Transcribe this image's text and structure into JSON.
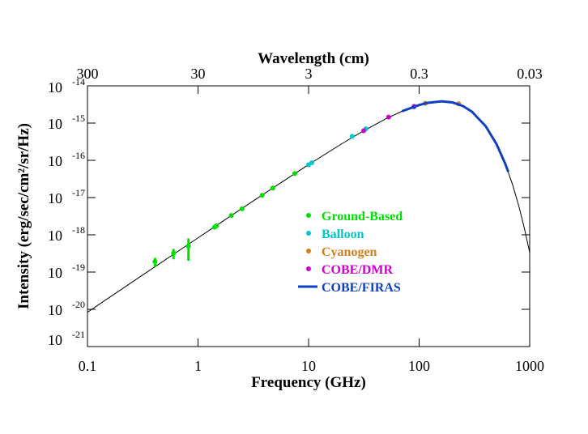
{
  "chart_data": {
    "type": "scatter",
    "xlabel": "Frequency (GHz)",
    "x2label": "Wavelength (cm)",
    "ylabel": "Intensity (erg/sec/cm²/sr/Hz)",
    "xscale": "log",
    "yscale": "log",
    "xlim": [
      0.1,
      1000
    ],
    "xticks": [
      0.1,
      1,
      10,
      100,
      1000
    ],
    "x2lim": [
      300,
      0.03
    ],
    "x2ticks": [
      300,
      30,
      3,
      0.3,
      0.03
    ],
    "ylim": [
      1e-21,
      1e-14
    ],
    "yticks": [
      {
        "value": 1e-14,
        "label": "10",
        "exponent": "-14"
      },
      {
        "value": 1e-15,
        "label": "10",
        "exponent": "-15"
      },
      {
        "value": 1e-16,
        "label": "10",
        "exponent": "-16"
      },
      {
        "value": 1e-17,
        "label": "10",
        "exponent": "-17"
      },
      {
        "value": 1e-18,
        "label": "10",
        "exponent": "-18"
      },
      {
        "value": 1e-19,
        "label": "10",
        "exponent": "-19"
      },
      {
        "value": 1e-20,
        "label": "10",
        "exponent": "-20"
      },
      {
        "value": 1e-21,
        "label": "10",
        "exponent": "-21"
      }
    ],
    "series": [
      {
        "type": "line",
        "color": "#000000",
        "x": [
          0.1,
          0.3,
          1,
          2,
          3,
          5,
          10,
          20,
          30,
          50,
          70,
          100,
          120,
          160,
          200,
          250,
          300,
          400,
          500,
          600,
          700,
          800,
          900,
          1000
        ],
        "values": [
          8.35e-21,
          7.52e-20,
          8.29e-19,
          3.29e-18,
          7.33e-18,
          2e-17,
          7.65e-17,
          2.79e-16,
          5.71e-16,
          1.303e-15,
          2.078e-15,
          3.056e-15,
          3.497e-15,
          3.832e-15,
          3.585e-15,
          2.852e-15,
          2.028e-15,
          8.23e-16,
          2.763e-16,
          8.18e-17,
          2.235e-17,
          5.74e-18,
          1.403e-18,
          3.31e-19
        ]
      },
      {
        "type": "scatter",
        "name": "Ground-Based",
        "color": "#00e000",
        "x": [
          0.408,
          0.6,
          0.82,
          1.41,
          1.47,
          2.0,
          2.5,
          3.8,
          4.75,
          7.5
        ],
        "values": [
          1.9e-19,
          3.2e-19,
          5e-19,
          1.6e-18,
          1.75e-18,
          3.3e-18,
          5e-18,
          1.15e-17,
          1.8e-17,
          4.4e-17
        ],
        "errors": [
          5e-20,
          1e-19,
          3e-19,
          1e-19,
          1e-19,
          2e-19,
          3e-19,
          6e-19,
          1e-18,
          2e-18
        ]
      },
      {
        "type": "scatter",
        "name": "Balloon",
        "color": "#00c8c8",
        "x": [
          10,
          10.7,
          24.8,
          33,
          90
        ],
        "values": [
          7.6e-17,
          8.6e-17,
          4.4e-16,
          7e-16,
          2.7e-15
        ]
      },
      {
        "type": "scatter",
        "name": "Cyanogen",
        "color": "#d08020",
        "x": [
          113.6,
          227
        ],
        "values": [
          3.4e-15,
          3.3e-15
        ]
      },
      {
        "type": "scatter",
        "name": "COBE/DMR",
        "color": "#d000d0",
        "x": [
          31.5,
          53,
          90
        ],
        "values": [
          6.2e-16,
          1.45e-15,
          2.8e-15
        ]
      },
      {
        "type": "line",
        "name": "COBE/FIRAS",
        "color": "#1040c0",
        "width": 3,
        "x": [
          70,
          100,
          120,
          160,
          200,
          250,
          300,
          400,
          500,
          600,
          640
        ],
        "values": [
          2.078e-15,
          3.056e-15,
          3.497e-15,
          3.832e-15,
          3.585e-15,
          2.852e-15,
          2.028e-15,
          8.23e-16,
          2.763e-16,
          8.18e-17,
          4.91e-17
        ]
      }
    ]
  }
}
